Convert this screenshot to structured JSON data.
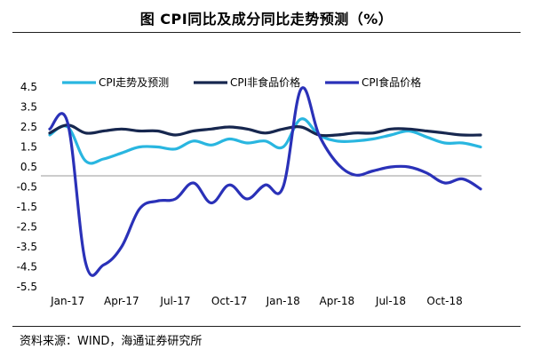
{
  "title": "图  CPI同比及成分同比走势预测（%）",
  "source": "资料来源：WIND，海通证券研究所",
  "chart_data": {
    "type": "line",
    "title": "CPI同比及成分同比走势预测（%）",
    "ylim": [
      -5.5,
      4.5
    ],
    "yticks": [
      "4.5",
      "3.5",
      "2.5",
      "1.5",
      "0.5",
      "-0.5",
      "-1.5",
      "-2.5",
      "-3.5",
      "-4.5",
      "-5.5"
    ],
    "xtick_labels": [
      "Jan-17",
      "Apr-17",
      "Jul-17",
      "Oct-17",
      "Jan-18",
      "Apr-18",
      "Jul-18",
      "Oct-18"
    ],
    "x": [
      "Dec-16",
      "Jan-17",
      "Feb-17",
      "Mar-17",
      "Apr-17",
      "May-17",
      "Jun-17",
      "Jul-17",
      "Aug-17",
      "Sep-17",
      "Oct-17",
      "Nov-17",
      "Dec-17",
      "Jan-18",
      "Feb-18",
      "Mar-18",
      "Apr-18",
      "May-18",
      "Jun-18",
      "Jul-18",
      "Aug-18",
      "Sep-18",
      "Oct-18",
      "Nov-18",
      "Dec-18"
    ],
    "legend_position": "top",
    "series": [
      {
        "name": "CPI走势及预测",
        "color": "#29b6e0",
        "values": [
          2.1,
          2.5,
          0.8,
          0.9,
          1.2,
          1.5,
          1.5,
          1.4,
          1.8,
          1.6,
          1.9,
          1.7,
          1.8,
          1.5,
          2.9,
          2.1,
          1.8,
          1.8,
          1.9,
          2.1,
          2.3,
          2.0,
          1.7,
          1.7,
          1.5
        ]
      },
      {
        "name": "CPI非食品价格",
        "color": "#17274f",
        "values": [
          2.2,
          2.6,
          2.2,
          2.3,
          2.4,
          2.3,
          2.3,
          2.1,
          2.3,
          2.4,
          2.5,
          2.4,
          2.2,
          2.4,
          2.5,
          2.1,
          2.1,
          2.2,
          2.2,
          2.4,
          2.4,
          2.3,
          2.2,
          2.1,
          2.1
        ]
      },
      {
        "name": "CPI食品价格",
        "color": "#2a31b8",
        "values": [
          2.4,
          2.7,
          -4.3,
          -4.4,
          -3.5,
          -1.6,
          -1.2,
          -1.1,
          -0.3,
          -1.3,
          -0.4,
          -1.1,
          -0.4,
          -0.5,
          4.4,
          2.1,
          0.7,
          0.1,
          0.3,
          0.5,
          0.5,
          0.2,
          -0.3,
          -0.1,
          -0.6
        ]
      }
    ]
  }
}
